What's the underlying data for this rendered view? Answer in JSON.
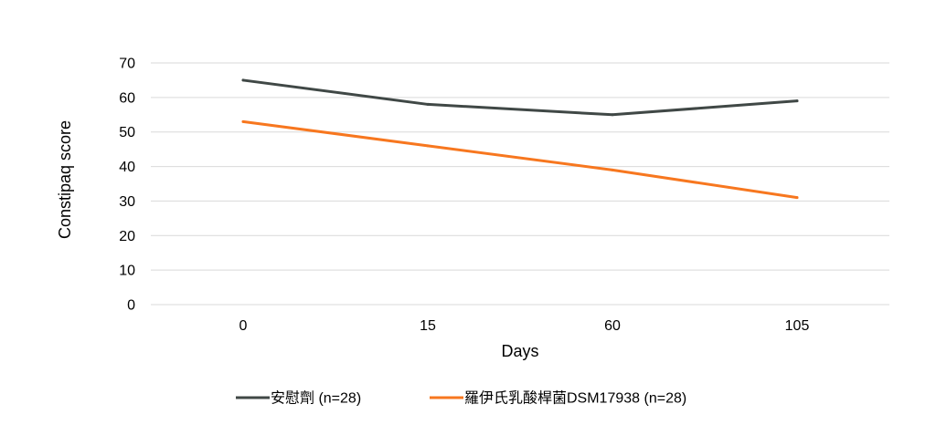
{
  "chart_data": {
    "type": "line",
    "title": "",
    "xlabel": "Days",
    "ylabel": "Constipaq score",
    "categories": [
      "0",
      "15",
      "60",
      "105"
    ],
    "ylim": [
      0,
      70
    ],
    "yticks": [
      0,
      10,
      20,
      30,
      40,
      50,
      60,
      70
    ],
    "grid": true,
    "legend_position": "bottom",
    "series": [
      {
        "name": "安慰劑 (n=28)",
        "values": [
          65,
          58,
          55,
          59
        ],
        "color": "#404846"
      },
      {
        "name": "羅伊氏乳酸桿菌DSM17938 (n=28)",
        "values": [
          53,
          46,
          39,
          31
        ],
        "color": "#f7771f"
      }
    ]
  }
}
